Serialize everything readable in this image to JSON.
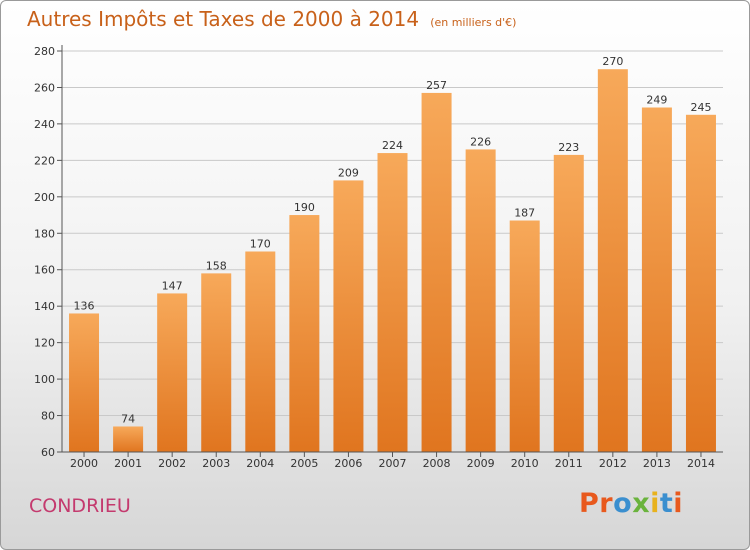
{
  "header": {
    "title": "Autres Impôts et Taxes de 2000 à 2014",
    "unit": "(en milliers d'€)"
  },
  "footer": {
    "commune": "CONDRIEU",
    "logo": "Proxiti"
  },
  "colors": {
    "title": "#c8611a",
    "commune": "#c43a6e",
    "bar_light": "#f7a95a",
    "bar_dark": "#e0751f",
    "logo_letters": [
      "#e8591d",
      "#e8591d",
      "#3b8fcf",
      "#6ab33d",
      "#e8b21d",
      "#3b8fcf",
      "#e8591d"
    ]
  },
  "chart_data": {
    "type": "bar",
    "title": "Autres Impôts et Taxes de 2000 à 2014",
    "xlabel": "",
    "ylabel": "",
    "categories": [
      "2000",
      "2001",
      "2002",
      "2003",
      "2004",
      "2005",
      "2006",
      "2007",
      "2008",
      "2009",
      "2010",
      "2011",
      "2012",
      "2013",
      "2014"
    ],
    "values": [
      136,
      74,
      147,
      158,
      170,
      190,
      209,
      224,
      257,
      226,
      187,
      223,
      270,
      249,
      245
    ],
    "ylim": [
      60,
      280
    ],
    "yticks": [
      60,
      80,
      100,
      120,
      140,
      160,
      180,
      200,
      220,
      240,
      260,
      280
    ],
    "grid": true,
    "legend": "none"
  }
}
